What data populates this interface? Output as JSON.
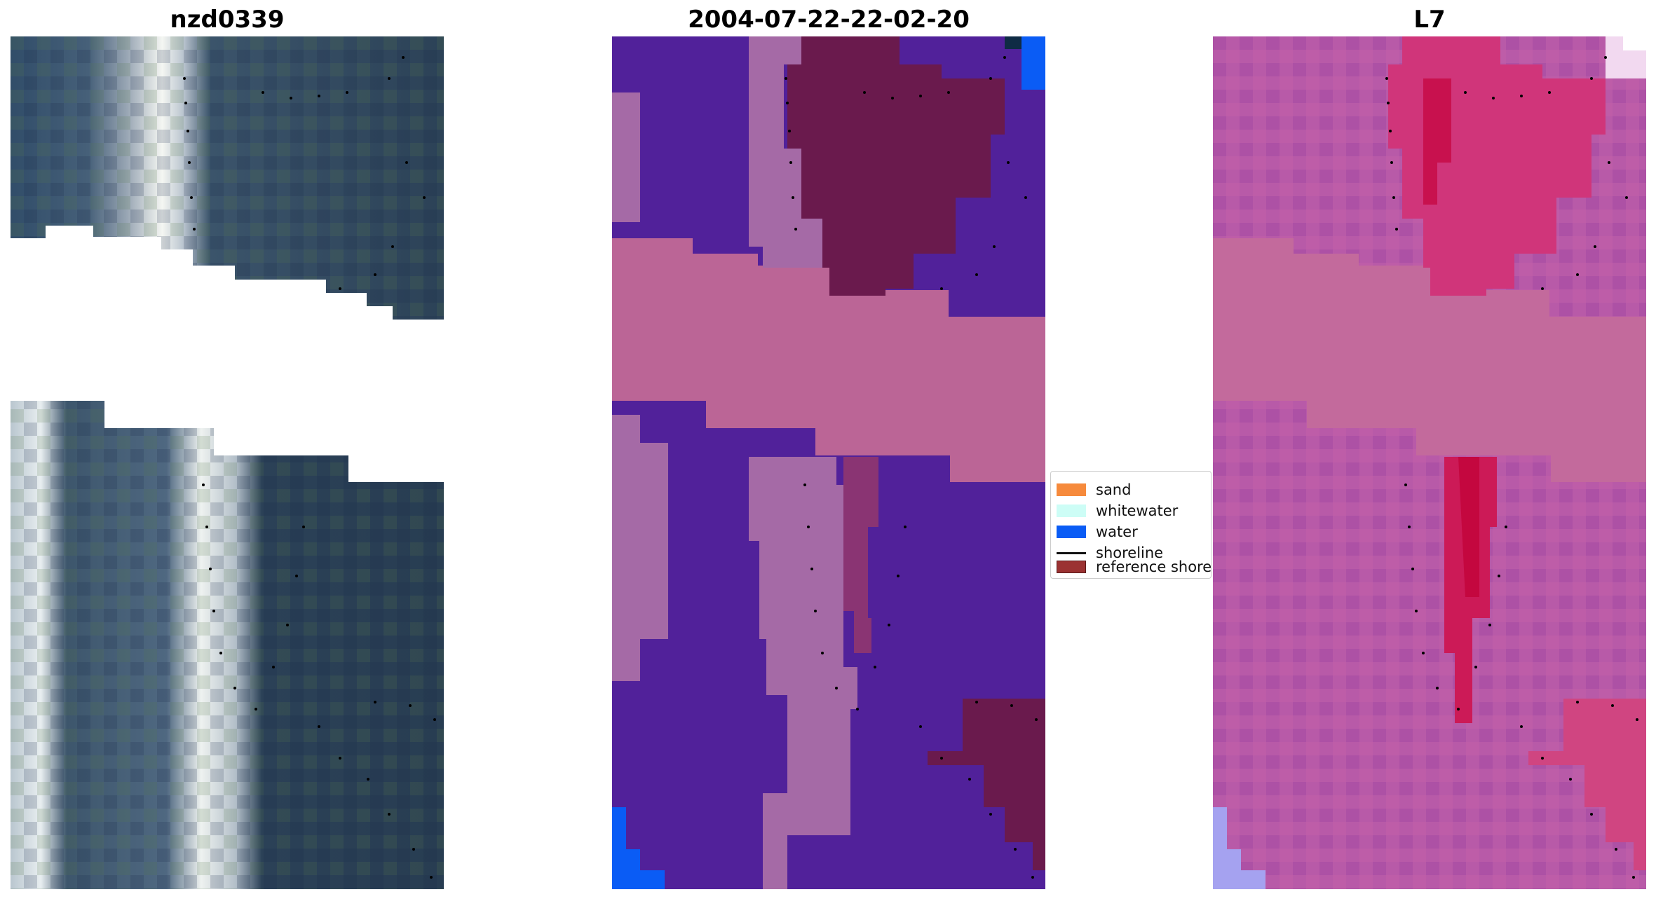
{
  "panels": [
    {
      "title": "nzd0339"
    },
    {
      "title": "2004-07-22-22-02-20"
    },
    {
      "title": "L7"
    }
  ],
  "legend": {
    "items": [
      {
        "label": "sand",
        "color": "#f68a3c",
        "kind": "patch"
      },
      {
        "label": "whitewater",
        "color": "#cdfdf6",
        "kind": "patch"
      },
      {
        "label": "water",
        "color": "#0a5cf5",
        "kind": "patch"
      },
      {
        "label": "shoreline",
        "color": "#111111",
        "kind": "line"
      },
      {
        "label": "reference shoreline",
        "color": "#9b3232",
        "kind": "patch"
      }
    ]
  },
  "colors": {
    "classification_background": "#51219a",
    "classification_sand_overlay": "#bb6596",
    "classification_reference": "#6a1a4d",
    "index_background": "#b85aa8",
    "index_high": "#c4174f"
  }
}
